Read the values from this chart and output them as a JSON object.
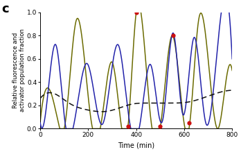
{
  "title_label": "c",
  "xlabel": "Time (min)",
  "ylabel": "Relative fluorescence and\nactivator population fraction",
  "xlim": [
    0,
    800
  ],
  "ylim": [
    0,
    1.05
  ],
  "ylim_display": [
    0,
    1.0
  ],
  "yticks": [
    0,
    0.2,
    0.4,
    0.6,
    0.8,
    1
  ],
  "xticks": [
    0,
    200,
    400,
    600,
    800
  ],
  "line_olive_color": "#6b6b00",
  "line_blue_color": "#2222aa",
  "line_black_color": "#111111",
  "red_dot_color": "#cc1111",
  "olive_t": [
    0,
    30,
    70,
    100,
    150,
    210,
    250,
    300,
    365,
    400,
    460,
    500,
    550,
    620,
    660,
    740,
    790,
    800
  ],
  "olive_y": [
    0.06,
    0.35,
    0.1,
    0.0,
    0.93,
    0.1,
    0.0,
    0.57,
    0.0,
    1.0,
    0.1,
    0.0,
    0.8,
    0.0,
    0.93,
    0.0,
    0.55,
    0.5
  ],
  "blue_t": [
    0,
    20,
    65,
    105,
    150,
    195,
    260,
    325,
    370,
    415,
    460,
    510,
    555,
    595,
    640,
    690,
    740,
    800
  ],
  "blue_y": [
    0.05,
    0.1,
    0.72,
    0.03,
    0.15,
    0.56,
    0.04,
    0.72,
    0.09,
    0.03,
    0.55,
    0.07,
    0.82,
    0.12,
    0.78,
    0.05,
    0.72,
    0.6
  ],
  "black_t": [
    0,
    60,
    120,
    200,
    280,
    380,
    460,
    540,
    620,
    700,
    800
  ],
  "black_y": [
    0.26,
    0.3,
    0.22,
    0.16,
    0.15,
    0.21,
    0.22,
    0.22,
    0.23,
    0.28,
    0.33
  ],
  "red_dots": [
    [
      400,
      1.0
    ],
    [
      365,
      0.02
    ],
    [
      500,
      0.02
    ],
    [
      555,
      0.8
    ],
    [
      620,
      0.05
    ]
  ],
  "background_color": "#ffffff"
}
